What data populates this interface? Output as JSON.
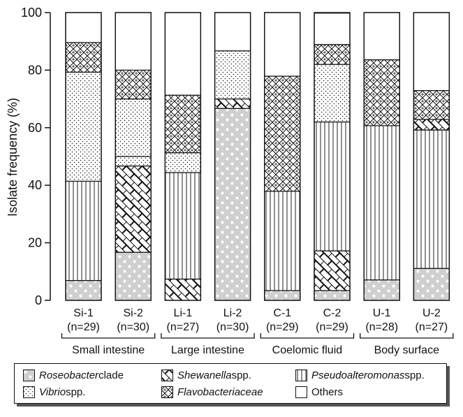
{
  "chart_data": {
    "type": "bar",
    "stacked": true,
    "ylabel": "Isolate frequency (%)",
    "ylim": [
      0,
      100
    ],
    "yticks": [
      "0",
      "20",
      "40",
      "60",
      "80",
      "100"
    ],
    "categories": [
      {
        "name": "Si-1",
        "n": "(n=29)"
      },
      {
        "name": "Si-2",
        "n": "(n=30)"
      },
      {
        "name": "Li-1",
        "n": "(n=27)"
      },
      {
        "name": "Li-2",
        "n": "(n=30)"
      },
      {
        "name": "C-1",
        "n": "(n=29)"
      },
      {
        "name": "C-2",
        "n": "(n=29)"
      },
      {
        "name": "U-1",
        "n": "(n=28)"
      },
      {
        "name": "U-2",
        "n": "(n=27)"
      }
    ],
    "groups": [
      {
        "label": "Small intestine",
        "categories": [
          0,
          1
        ]
      },
      {
        "label": "Large intestine",
        "categories": [
          2,
          3
        ]
      },
      {
        "label": "Coelomic fluid",
        "categories": [
          4,
          5
        ]
      },
      {
        "label": "Body surface",
        "categories": [
          6,
          7
        ]
      }
    ],
    "series": [
      {
        "key": "roseobacter",
        "name_italic": "Roseobacter",
        "name_rest": " clade",
        "pattern": "dots-gray",
        "values": [
          6.9,
          16.7,
          0,
          66.7,
          3.4,
          3.4,
          7.1,
          11.1
        ]
      },
      {
        "key": "shewanella",
        "name_italic": "Shewanella",
        "name_rest": " spp.",
        "pattern": "crosshatch-brick",
        "values": [
          0,
          30.0,
          7.4,
          0,
          0,
          13.8,
          0,
          0
        ]
      },
      {
        "key": "pseudoalteromonas",
        "name_italic": "Pseudoalteromonas",
        "name_rest": " spp.",
        "pattern": "vertical-lines",
        "values": [
          34.5,
          0,
          37.0,
          0,
          34.5,
          44.8,
          53.6,
          48.1
        ]
      },
      {
        "key": "vibrio",
        "name_italic": "Vibrio",
        "name_rest": " spp.",
        "pattern": "dense-dots",
        "values": [
          37.9,
          3.3,
          0,
          0,
          0,
          0,
          0,
          0
        ]
      },
      {
        "key": "vibrio2",
        "name_italic": "",
        "name_rest": "",
        "pattern": "dense-dots",
        "legend": false,
        "values": [
          0,
          20.0,
          6.9,
          0,
          0,
          20.0,
          0,
          0
        ]
      },
      {
        "key": "shewanella2",
        "name_italic": "",
        "name_rest": "",
        "pattern": "crosshatch-brick",
        "legend": false,
        "values": [
          0,
          0,
          0,
          3.3,
          0,
          0,
          0,
          3.7
        ]
      },
      {
        "key": "vibrio3",
        "name_italic": "",
        "name_rest": "",
        "pattern": "dense-dots",
        "legend": false,
        "values": [
          0,
          0,
          0,
          16.7,
          0,
          0,
          0,
          0
        ]
      },
      {
        "key": "flavobacteriaceae",
        "name_italic": "Flavobacteriaceae",
        "name_rest": "",
        "pattern": "scale",
        "values": [
          10.3,
          10.0,
          20.0,
          0,
          40.0,
          6.9,
          22.9,
          10.0
        ]
      },
      {
        "key": "others",
        "name_italic": "",
        "name_rest": "Others",
        "pattern": "white",
        "values": [
          10.4,
          20.0,
          28.7,
          13.3,
          22.1,
          10.9,
          16.4,
          27.1
        ]
      }
    ]
  }
}
